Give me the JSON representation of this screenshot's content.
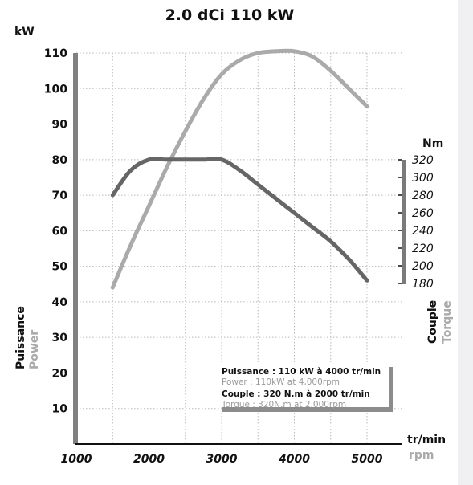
{
  "chart_data": {
    "type": "line",
    "title": "2.0 dCi 110 kW",
    "x": [
      1500,
      1750,
      2000,
      2250,
      2500,
      2750,
      3000,
      3250,
      3500,
      3750,
      4000,
      4250,
      4500,
      4750,
      5000
    ],
    "x_axis": {
      "ticks": [
        1000,
        2000,
        3000,
        4000,
        5000
      ],
      "label": "tr/min",
      "label_alt": "rpm",
      "xlim": [
        1000,
        5000
      ]
    },
    "y_left": {
      "unit": "kW",
      "ticks": [
        10,
        20,
        30,
        40,
        50,
        60,
        70,
        80,
        90,
        100,
        110
      ],
      "ylim": [
        0,
        110
      ],
      "label": "Puissance",
      "label_alt": "Power"
    },
    "y_right": {
      "unit": "Nm",
      "ticks": [
        180,
        200,
        220,
        240,
        260,
        280,
        300,
        320
      ],
      "ylim": [
        180,
        320
      ],
      "label": "Couple",
      "label_alt": "Torque"
    },
    "series": [
      {
        "name": "Puissance",
        "axis": "left",
        "color": "#aaaaaa",
        "values": [
          44,
          56,
          67,
          78,
          88,
          97,
          104,
          108,
          110,
          110.5,
          110.5,
          109,
          105,
          100,
          95
        ]
      },
      {
        "name": "Couple",
        "axis": "left",
        "color": "#666666",
        "values": [
          70,
          77,
          80,
          80,
          80,
          80,
          80,
          77,
          73,
          69,
          65,
          61,
          57,
          52,
          46
        ]
      }
    ],
    "annotation": {
      "line1": "Puissance : 110 kW à 4000 tr/min",
      "line2": "Power : 110kW at 4,000rpm",
      "line3": "Couple : 320 N.m à 2000 tr/min",
      "line4": "Torque : 320N.m at 2,000rpm"
    },
    "grid": true
  }
}
